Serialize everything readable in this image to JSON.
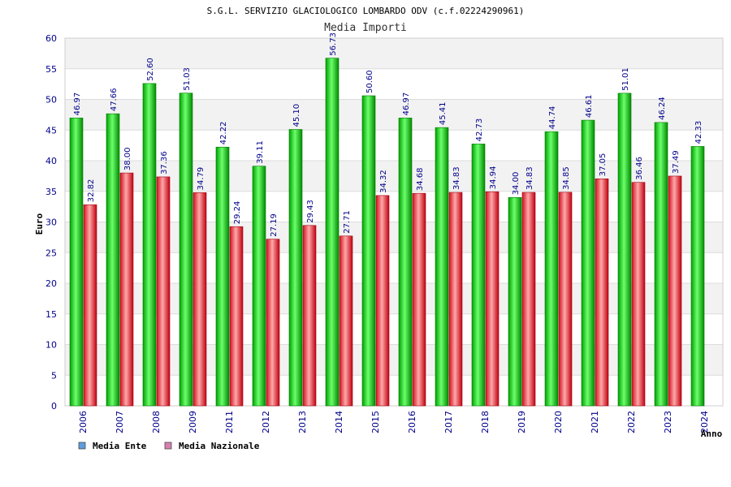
{
  "chart_data": {
    "type": "bar",
    "title": "S.G.L. SERVIZIO GLACIOLOGICO LOMBARDO ODV (c.f.02224290961)",
    "subtitle": "Media Importi",
    "xlabel": "Anno",
    "ylabel": "Euro",
    "ylim": [
      0,
      60
    ],
    "yticks": [
      "0",
      "5",
      "10",
      "15",
      "20",
      "25",
      "30",
      "35",
      "40",
      "45",
      "50",
      "55",
      "60"
    ],
    "categories": [
      "2006",
      "2007",
      "2008",
      "2009",
      "2011",
      "2012",
      "2013",
      "2014",
      "2015",
      "2016",
      "2017",
      "2018",
      "2019",
      "2020",
      "2021",
      "2022",
      "2023",
      "2024"
    ],
    "series": [
      {
        "name": "Media Ente",
        "color": "#00b400",
        "values": [
          46.97,
          47.66,
          52.6,
          51.03,
          42.22,
          39.11,
          45.1,
          56.73,
          50.6,
          46.97,
          45.41,
          42.73,
          34.0,
          44.74,
          46.61,
          51.01,
          46.24,
          42.33
        ],
        "labels": [
          "46.97",
          "47.66",
          "52.60",
          "51.03",
          "42.22",
          "39.11",
          "45.10",
          "56.73",
          "50.60",
          "46.97",
          "45.41",
          "42.73",
          "34.00",
          "44.74",
          "46.61",
          "51.01",
          "46.24",
          "42.33"
        ]
      },
      {
        "name": "Media Nazionale",
        "color": "#e0282d",
        "values": [
          32.82,
          38.0,
          37.36,
          34.79,
          29.24,
          27.19,
          29.43,
          27.71,
          34.32,
          34.68,
          34.83,
          34.94,
          34.83,
          34.85,
          37.05,
          36.46,
          37.49,
          null
        ],
        "labels": [
          "32.82",
          "38.00",
          "37.36",
          "34.79",
          "29.24",
          "27.19",
          "29.43",
          "27.71",
          "34.32",
          "34.68",
          "34.83",
          "34.94",
          "34.83",
          "34.85",
          "37.05",
          "36.46",
          "37.49",
          null
        ]
      }
    ],
    "legend": [
      {
        "name": "Media Ente",
        "swatch_color": "#5f9de0"
      },
      {
        "name": "Media Nazionale",
        "swatch_color": "#d77fb0"
      }
    ],
    "legend_position": "bottom-left",
    "grid": true,
    "colors": {
      "band_light": "#f2f2f2",
      "band_white": "#ffffff",
      "tick_text": "#00008b",
      "label_text": "#00008b",
      "title_text": "#000000"
    }
  }
}
